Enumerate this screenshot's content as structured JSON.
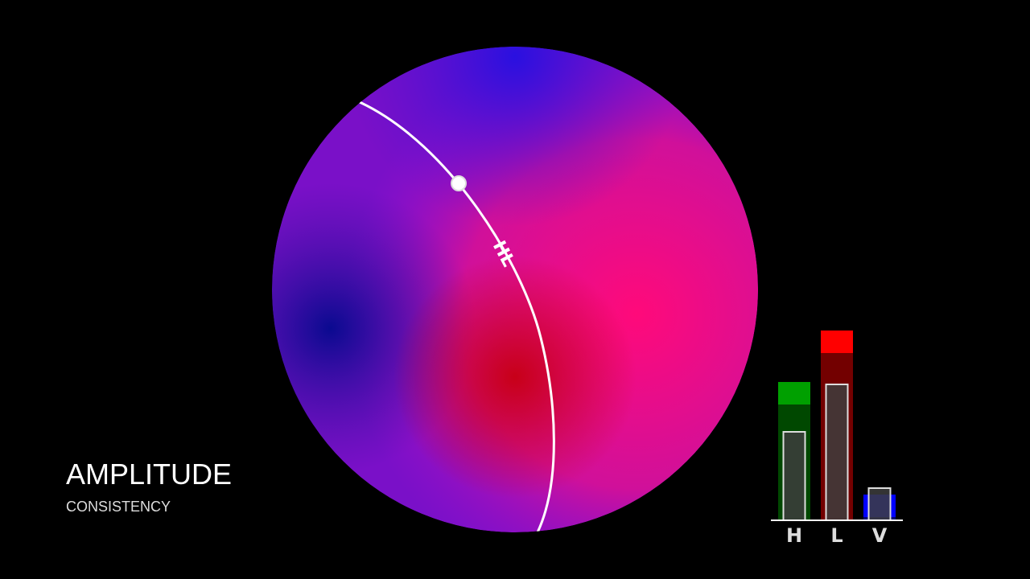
{
  "title": "AMPLITUDE",
  "subtitle": "CONSISTENCY",
  "sphere": {
    "arc_label": "HL"
  },
  "chart_data": {
    "type": "bar",
    "categories": [
      "H",
      "L",
      "V"
    ],
    "ylim": [
      0,
      250
    ],
    "series": [
      {
        "colors": [
          "#00a000",
          "#ff0000",
          "#0000ff"
        ],
        "values": [
          172,
          236,
          32
        ]
      },
      {
        "color": "#3d3d3d",
        "values": [
          110,
          169,
          40
        ]
      }
    ]
  }
}
